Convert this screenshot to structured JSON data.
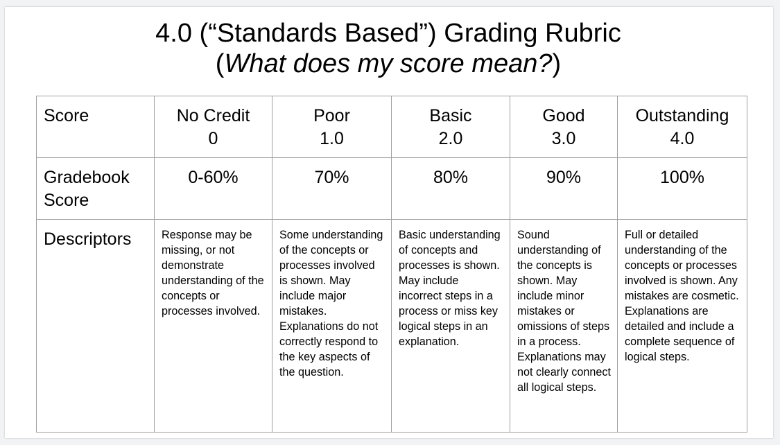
{
  "title": {
    "line1": "4.0 (“Standards Based”) Grading Rubric",
    "line2_open": "(",
    "line2_italic": "What does my score mean?",
    "line2_close": ")"
  },
  "table": {
    "row_labels": [
      "Score",
      "Gradebook Score",
      "Descriptors"
    ],
    "columns": [
      {
        "name": "No Credit",
        "score": "0",
        "gradebook": "0-60%",
        "descriptor": "Response may be missing, or not demonstrate understanding of the concepts or processes involved."
      },
      {
        "name": "Poor",
        "score": "1.0",
        "gradebook": "70%",
        "descriptor": "Some understanding of the concepts or processes involved is shown. May include major mistakes. Explanations do not correctly respond to the key aspects of the question."
      },
      {
        "name": "Basic",
        "score": "2.0",
        "gradebook": "80%",
        "descriptor": "Basic understanding of concepts and processes is shown. May include incorrect steps in a process or miss key logical steps in an explanation."
      },
      {
        "name": "Good",
        "score": "3.0",
        "gradebook": "90%",
        "descriptor": "Sound understanding of the concepts is shown. May include minor mistakes or omissions of steps in a process. Explanations may not clearly connect all logical steps."
      },
      {
        "name": "Outstanding",
        "score": "4.0",
        "gradebook": "100%",
        "descriptor": "Full or detailed understanding of the concepts or processes involved is shown. Any mistakes are cosmetic. Explanations are detailed and include a complete sequence of logical steps."
      }
    ]
  }
}
